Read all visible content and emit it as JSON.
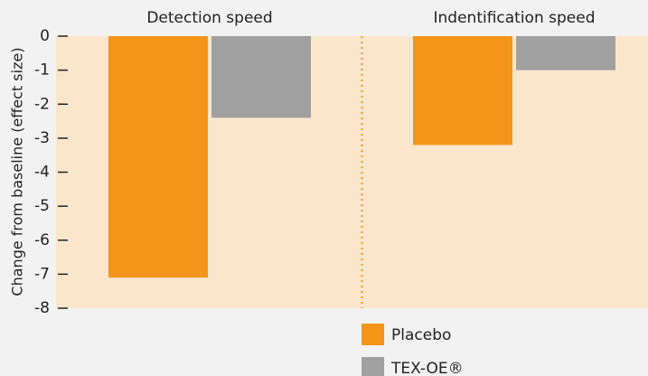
{
  "chart_data": {
    "type": "bar",
    "y_label": "Change from baseline (effect size)",
    "categories": [
      "Detection speed",
      "Indentification speed"
    ],
    "series": [
      {
        "name": "Placebo",
        "color": "#f39519",
        "values": [
          -7.1,
          -3.2
        ]
      },
      {
        "name": "TEX-OE®",
        "color": "#a0a0a0",
        "values": [
          -2.4,
          -1.0
        ]
      }
    ],
    "ylim": [
      -8,
      0
    ],
    "yticks": [
      0,
      -1,
      -2,
      -3,
      -4,
      -5,
      -6,
      -7,
      -8
    ],
    "legend": "bottom"
  }
}
